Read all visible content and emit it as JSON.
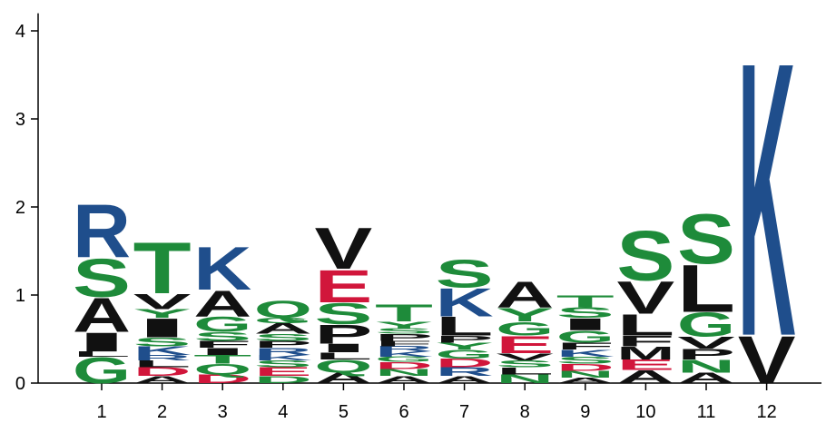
{
  "chart_data": {
    "type": "sequence-logo",
    "title": "",
    "xlabel": "",
    "ylabel": "",
    "ylim": [
      0,
      4.2
    ],
    "yticks": [
      0,
      1,
      2,
      3,
      4
    ],
    "grid": false,
    "colors": {
      "green": "#1e8b3a",
      "blue": "#1f4e8c",
      "red": "#d1163b",
      "black": "#111111"
    },
    "positions": [
      {
        "label": "1",
        "letters": [
          {
            "char": "G",
            "height": 0.3,
            "color": "green"
          },
          {
            "char": "L",
            "height": 0.06,
            "color": "black"
          },
          {
            "char": "I",
            "height": 0.22,
            "color": "black"
          },
          {
            "char": "A",
            "height": 0.4,
            "color": "black"
          },
          {
            "char": "S",
            "height": 0.45,
            "color": "green"
          },
          {
            "char": "R",
            "height": 0.62,
            "color": "blue"
          }
        ]
      },
      {
        "label": "2",
        "letters": [
          {
            "char": "A",
            "height": 0.08,
            "color": "black"
          },
          {
            "char": "D",
            "height": 0.1,
            "color": "red"
          },
          {
            "char": "L",
            "height": 0.08,
            "color": "black"
          },
          {
            "char": "R",
            "height": 0.06,
            "color": "blue"
          },
          {
            "char": "K",
            "height": 0.1,
            "color": "blue"
          },
          {
            "char": "S",
            "height": 0.1,
            "color": "green"
          },
          {
            "char": "I",
            "height": 0.22,
            "color": "black"
          },
          {
            "char": "Y",
            "height": 0.1,
            "color": "green"
          },
          {
            "char": "V",
            "height": 0.18,
            "color": "black"
          },
          {
            "char": "T",
            "height": 0.6,
            "color": "green"
          }
        ]
      },
      {
        "label": "3",
        "letters": [
          {
            "char": "D",
            "height": 0.1,
            "color": "red"
          },
          {
            "char": "Q",
            "height": 0.12,
            "color": "green"
          },
          {
            "char": "T",
            "height": 0.1,
            "color": "green"
          },
          {
            "char": "I",
            "height": 0.08,
            "color": "black"
          },
          {
            "char": "F",
            "height": 0.08,
            "color": "black"
          },
          {
            "char": "S",
            "height": 0.1,
            "color": "green"
          },
          {
            "char": "G",
            "height": 0.18,
            "color": "green"
          },
          {
            "char": "A",
            "height": 0.3,
            "color": "black"
          },
          {
            "char": "K",
            "height": 0.5,
            "color": "blue"
          }
        ]
      },
      {
        "label": "4",
        "letters": [
          {
            "char": "D",
            "height": 0.08,
            "color": "green"
          },
          {
            "char": "E",
            "height": 0.1,
            "color": "red"
          },
          {
            "char": "S",
            "height": 0.08,
            "color": "green"
          },
          {
            "char": "K",
            "height": 0.06,
            "color": "blue"
          },
          {
            "char": "R",
            "height": 0.08,
            "color": "blue"
          },
          {
            "char": "P",
            "height": 0.08,
            "color": "black"
          },
          {
            "char": "S",
            "height": 0.08,
            "color": "green"
          },
          {
            "char": "A",
            "height": 0.12,
            "color": "black"
          },
          {
            "char": "G",
            "height": 0.06,
            "color": "green"
          },
          {
            "char": "Q",
            "height": 0.2,
            "color": "green"
          }
        ]
      },
      {
        "label": "5",
        "letters": [
          {
            "char": "A",
            "height": 0.12,
            "color": "black"
          },
          {
            "char": "Q",
            "height": 0.15,
            "color": "green"
          },
          {
            "char": "L",
            "height": 0.08,
            "color": "black"
          },
          {
            "char": "I",
            "height": 0.1,
            "color": "black"
          },
          {
            "char": "P",
            "height": 0.22,
            "color": "black"
          },
          {
            "char": "S",
            "height": 0.25,
            "color": "green"
          },
          {
            "char": "E",
            "height": 0.38,
            "color": "red"
          },
          {
            "char": "V",
            "height": 0.48,
            "color": "black"
          }
        ]
      },
      {
        "label": "6",
        "letters": [
          {
            "char": "A",
            "height": 0.08,
            "color": "black"
          },
          {
            "char": "N",
            "height": 0.08,
            "color": "green"
          },
          {
            "char": "D",
            "height": 0.08,
            "color": "red"
          },
          {
            "char": "G",
            "height": 0.06,
            "color": "green"
          },
          {
            "char": "K",
            "height": 0.06,
            "color": "blue"
          },
          {
            "char": "R",
            "height": 0.06,
            "color": "blue"
          },
          {
            "char": "F",
            "height": 0.06,
            "color": "black"
          },
          {
            "char": "P",
            "height": 0.08,
            "color": "black"
          },
          {
            "char": "S",
            "height": 0.06,
            "color": "green"
          },
          {
            "char": "Y",
            "height": 0.08,
            "color": "green"
          },
          {
            "char": "T",
            "height": 0.2,
            "color": "green"
          }
        ]
      },
      {
        "label": "7",
        "letters": [
          {
            "char": "A",
            "height": 0.08,
            "color": "black"
          },
          {
            "char": "R",
            "height": 0.1,
            "color": "blue"
          },
          {
            "char": "D",
            "height": 0.1,
            "color": "red"
          },
          {
            "char": "G",
            "height": 0.1,
            "color": "green"
          },
          {
            "char": "Y",
            "height": 0.08,
            "color": "green"
          },
          {
            "char": "P",
            "height": 0.08,
            "color": "black"
          },
          {
            "char": "L",
            "height": 0.22,
            "color": "black"
          },
          {
            "char": "K",
            "height": 0.33,
            "color": "blue"
          },
          {
            "char": "S",
            "height": 0.32,
            "color": "green"
          }
        ]
      },
      {
        "label": "8",
        "letters": [
          {
            "char": "N",
            "height": 0.1,
            "color": "green"
          },
          {
            "char": "L",
            "height": 0.08,
            "color": "black"
          },
          {
            "char": "S",
            "height": 0.08,
            "color": "green"
          },
          {
            "char": "V",
            "height": 0.08,
            "color": "black"
          },
          {
            "char": "E",
            "height": 0.2,
            "color": "red"
          },
          {
            "char": "G",
            "height": 0.16,
            "color": "green"
          },
          {
            "char": "Y",
            "height": 0.16,
            "color": "green"
          },
          {
            "char": "A",
            "height": 0.3,
            "color": "black"
          }
        ]
      },
      {
        "label": "9",
        "letters": [
          {
            "char": "A",
            "height": 0.06,
            "color": "black"
          },
          {
            "char": "N",
            "height": 0.08,
            "color": "green"
          },
          {
            "char": "D",
            "height": 0.08,
            "color": "red"
          },
          {
            "char": "S",
            "height": 0.08,
            "color": "green"
          },
          {
            "char": "K",
            "height": 0.08,
            "color": "blue"
          },
          {
            "char": "F",
            "height": 0.08,
            "color": "black"
          },
          {
            "char": "G",
            "height": 0.14,
            "color": "green"
          },
          {
            "char": "I",
            "height": 0.14,
            "color": "black"
          },
          {
            "char": "S",
            "height": 0.12,
            "color": "green"
          },
          {
            "char": "T",
            "height": 0.14,
            "color": "green"
          }
        ]
      },
      {
        "label": "10",
        "letters": [
          {
            "char": "A",
            "height": 0.15,
            "color": "black"
          },
          {
            "char": "E",
            "height": 0.12,
            "color": "red"
          },
          {
            "char": "M",
            "height": 0.15,
            "color": "black"
          },
          {
            "char": "F",
            "height": 0.12,
            "color": "black"
          },
          {
            "char": "L",
            "height": 0.25,
            "color": "black"
          },
          {
            "char": "V",
            "height": 0.38,
            "color": "black"
          },
          {
            "char": "S",
            "height": 0.58,
            "color": "green"
          }
        ]
      },
      {
        "label": "11",
        "letters": [
          {
            "char": "A",
            "height": 0.12,
            "color": "black"
          },
          {
            "char": "N",
            "height": 0.15,
            "color": "green"
          },
          {
            "char": "P",
            "height": 0.12,
            "color": "black"
          },
          {
            "char": "V",
            "height": 0.14,
            "color": "black"
          },
          {
            "char": "G",
            "height": 0.28,
            "color": "green"
          },
          {
            "char": "L",
            "height": 0.55,
            "color": "black"
          },
          {
            "char": "S",
            "height": 0.58,
            "color": "green"
          }
        ]
      },
      {
        "label": "12",
        "letters": [
          {
            "char": "V",
            "height": 0.55,
            "color": "black"
          },
          {
            "char": "K",
            "height": 3.2,
            "color": "blue"
          }
        ]
      }
    ]
  }
}
